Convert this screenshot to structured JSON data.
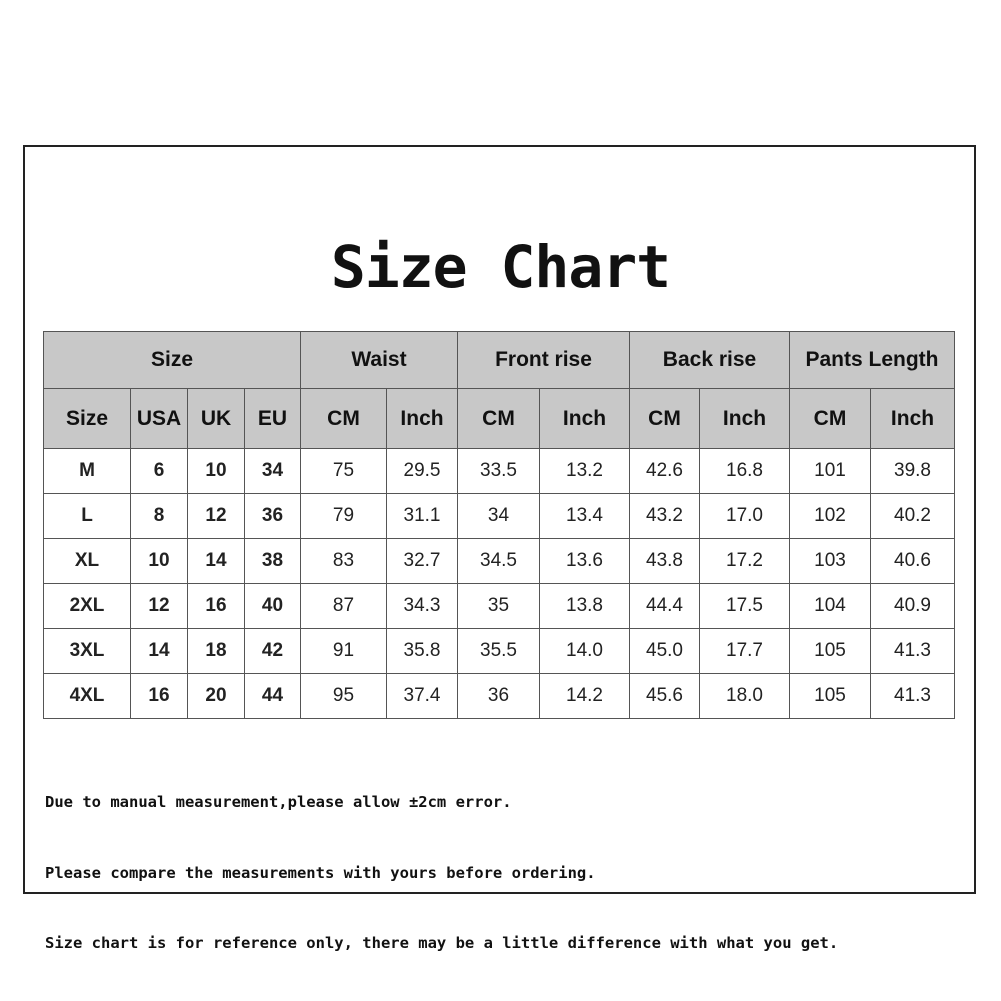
{
  "title": "Size Chart",
  "groups": [
    "Size",
    "Waist",
    "Front rise",
    "Back rise",
    "Pants Length"
  ],
  "subheaders": [
    "Size",
    "USA",
    "UK",
    "EU",
    "CM",
    "Inch",
    "CM",
    "Inch",
    "CM",
    "Inch",
    "CM",
    "Inch"
  ],
  "rows": [
    [
      "M",
      "6",
      "10",
      "34",
      "75",
      "29.5",
      "33.5",
      "13.2",
      "42.6",
      "16.8",
      "101",
      "39.8"
    ],
    [
      "L",
      "8",
      "12",
      "36",
      "79",
      "31.1",
      "34",
      "13.4",
      "43.2",
      "17.0",
      "102",
      "40.2"
    ],
    [
      "XL",
      "10",
      "14",
      "38",
      "83",
      "32.7",
      "34.5",
      "13.6",
      "43.8",
      "17.2",
      "103",
      "40.6"
    ],
    [
      "2XL",
      "12",
      "16",
      "40",
      "87",
      "34.3",
      "35",
      "13.8",
      "44.4",
      "17.5",
      "104",
      "40.9"
    ],
    [
      "3XL",
      "14",
      "18",
      "42",
      "91",
      "35.8",
      "35.5",
      "14.0",
      "45.0",
      "17.7",
      "105",
      "41.3"
    ],
    [
      "4XL",
      "16",
      "20",
      "44",
      "95",
      "37.4",
      "36",
      "14.2",
      "45.6",
      "18.0",
      "105",
      "41.3"
    ]
  ],
  "notes": [
    "Due to manual measurement,please allow ±2cm error.",
    "Please compare the measurements with yours before ordering.",
    "Size chart is for reference only, there may be a little difference with what you get."
  ],
  "colors": {
    "header_bg": "#c8c8c8",
    "border": "#555555"
  }
}
